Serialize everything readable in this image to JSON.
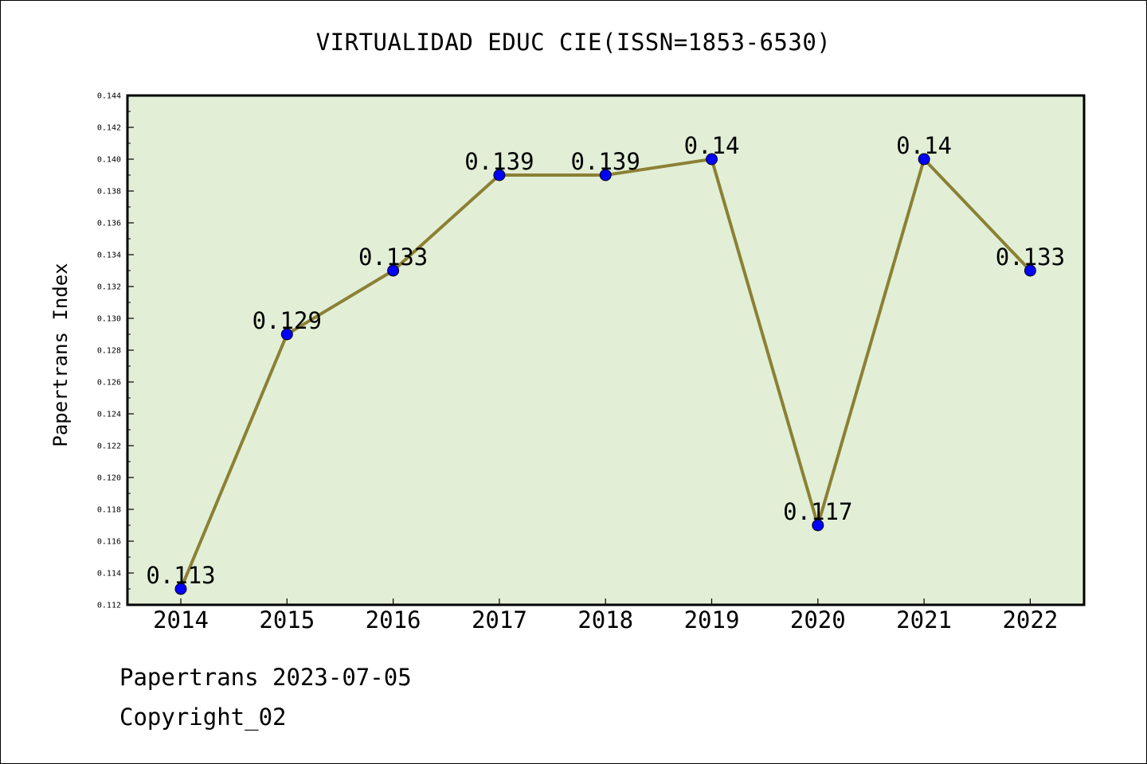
{
  "header": {
    "title": "VIRTUALIDAD EDUC CIE(ISSN=1853-6530)"
  },
  "footer": {
    "line1": "Papertrans 2023-07-05",
    "line2": "Copyright_02"
  },
  "colors": {
    "plot_background": "#e2efd6",
    "line": "#8b8035",
    "marker": "#0000ff",
    "axis": "#000000"
  },
  "chart_data": {
    "type": "line",
    "title": "VIRTUALIDAD EDUC CIE(ISSN=1853-6530)",
    "xlabel": "",
    "ylabel": "Papertrans Index",
    "x": [
      "2014",
      "2015",
      "2016",
      "2017",
      "2018",
      "2019",
      "2020",
      "2021",
      "2022"
    ],
    "series": [
      {
        "values": [
          0.113,
          0.129,
          0.133,
          0.139,
          0.139,
          0.14,
          0.117,
          0.14,
          0.133
        ],
        "labels": [
          "0.113",
          "0.129",
          "0.133",
          "0.139",
          "0.139",
          "0.14",
          "0.117",
          "0.14",
          "0.133"
        ]
      }
    ],
    "ylim": [
      0.112,
      0.144
    ],
    "yticks": [
      "0.112",
      "0.114",
      "0.116",
      "0.118",
      "0.120",
      "0.122",
      "0.124",
      "0.126",
      "0.128",
      "0.130",
      "0.132",
      "0.134",
      "0.136",
      "0.138",
      "0.140",
      "0.142",
      "0.144"
    ],
    "grid": false,
    "legend": "none"
  }
}
